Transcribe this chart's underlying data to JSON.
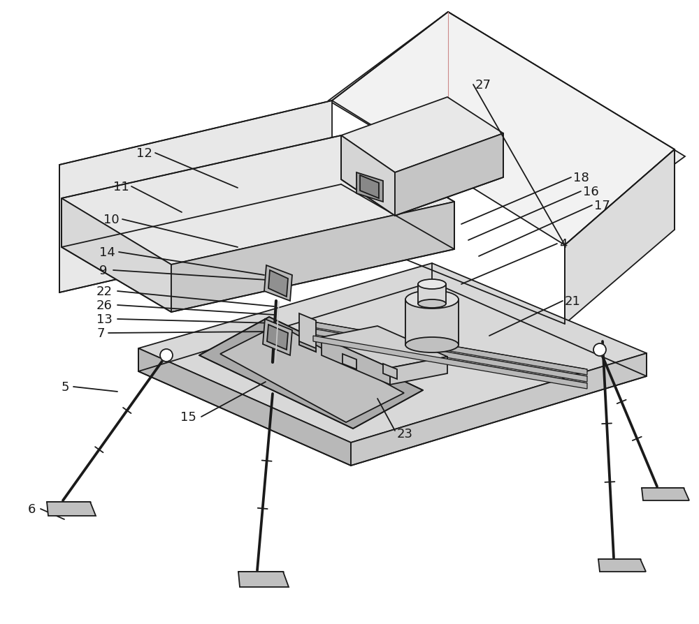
{
  "bg_color": "#ffffff",
  "line_color": "#1a1a1a",
  "lw": 1.3,
  "fs": 13,
  "shade1": "#eeeeee",
  "shade2": "#d8d8d8",
  "shade3": "#c4c4c4",
  "shade4": "#b0b0b0"
}
